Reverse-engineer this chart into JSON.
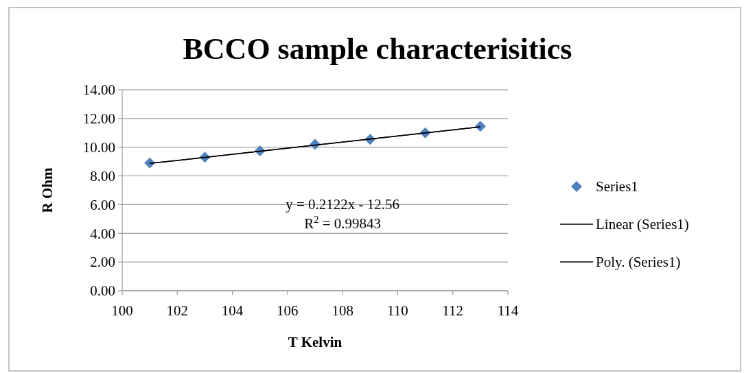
{
  "chart_data": {
    "type": "scatter",
    "title": "BCCO sample characterisitics",
    "xlabel": "T Kelvin",
    "ylabel": "R Ohm",
    "x": [
      101,
      103,
      105,
      107,
      109,
      111,
      113
    ],
    "series": [
      {
        "name": "Series1",
        "color": "#4f81bd",
        "marker": "diamond",
        "values": [
          8.9,
          9.3,
          9.75,
          10.2,
          10.55,
          11.0,
          11.45
        ]
      },
      {
        "name": "Linear (Series1)",
        "type": "line",
        "color": "#000000",
        "x": [
          101,
          113
        ],
        "values": [
          8.87,
          11.42
        ]
      },
      {
        "name": "Poly. (Series1)",
        "type": "line",
        "color": "#000000",
        "x": [
          101,
          105,
          109,
          113
        ],
        "values": [
          8.87,
          9.72,
          10.57,
          11.42
        ]
      }
    ],
    "xlim": [
      100,
      114
    ],
    "xticks": [
      100,
      102,
      104,
      106,
      108,
      110,
      112,
      114
    ],
    "ylim": [
      0,
      14
    ],
    "yticks": [
      {
        "value": 0,
        "label": "0.00"
      },
      {
        "value": 2,
        "label": "2.00"
      },
      {
        "value": 4,
        "label": "4.00"
      },
      {
        "value": 6,
        "label": "6.00"
      },
      {
        "value": 8,
        "label": "8.00"
      },
      {
        "value": 10,
        "label": "10.00"
      },
      {
        "value": 12,
        "label": "12.00"
      },
      {
        "value": 14,
        "label": "14.00"
      }
    ],
    "grid": "y",
    "legend": "right",
    "annotations": [
      "y = 0.2122x - 12.56",
      "R$^{2}$ = 0.99843"
    ]
  }
}
